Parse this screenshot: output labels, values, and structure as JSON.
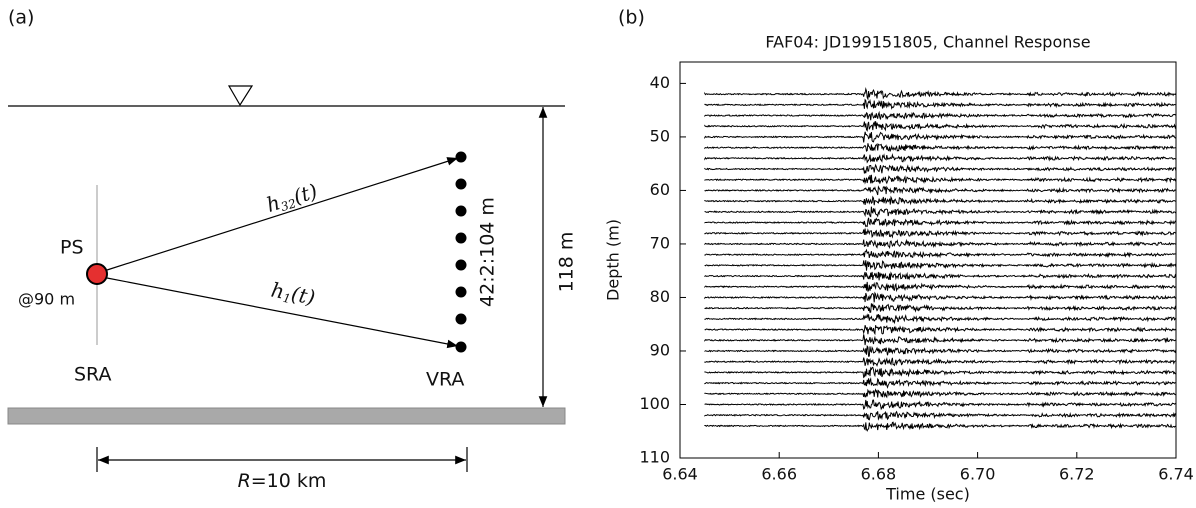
{
  "diagram": {
    "panel_label": "(a)",
    "source": "PS",
    "source_depth": "@90 m",
    "source_array": "SRA",
    "receiver_array": "VRA",
    "receiver_depths": "42:2:104 m",
    "water_depth": "118 m",
    "upper_path": {
      "base": "h",
      "sub": "32",
      "arg": "(t)"
    },
    "lower_path": {
      "base": "h",
      "sub": "1",
      "arg": "(t)"
    },
    "range": {
      "symbol": "R",
      "rest": "=10 km"
    }
  },
  "chart_data": {
    "type": "waveform",
    "panel_label": "(b)",
    "title": "FAF04: JD199151805, Channel Response",
    "x_label": "Time (sec)",
    "y_label": "Depth (m)",
    "xlim": [
      6.64,
      6.74
    ],
    "xticks": [
      {
        "value": 6.64,
        "label": "6.64"
      },
      {
        "value": 6.66,
        "label": "6.66"
      },
      {
        "value": 6.68,
        "label": "6.68"
      },
      {
        "value": 6.7,
        "label": "6.70"
      },
      {
        "value": 6.72,
        "label": "6.72"
      },
      {
        "value": 6.74,
        "label": "6.74"
      }
    ],
    "ylim": [
      36,
      110
    ],
    "yticks": [
      40,
      50,
      60,
      70,
      80,
      90,
      100,
      110
    ],
    "y_inverted": true,
    "trace_depths": [
      42,
      44,
      46,
      48,
      50,
      52,
      54,
      56,
      58,
      60,
      62,
      64,
      66,
      68,
      70,
      72,
      74,
      76,
      78,
      80,
      82,
      84,
      86,
      88,
      90,
      92,
      94,
      96,
      98,
      100,
      102,
      104
    ],
    "trace_start": 6.645,
    "arrival_window": [
      6.677,
      6.71
    ],
    "color": "#000000"
  }
}
